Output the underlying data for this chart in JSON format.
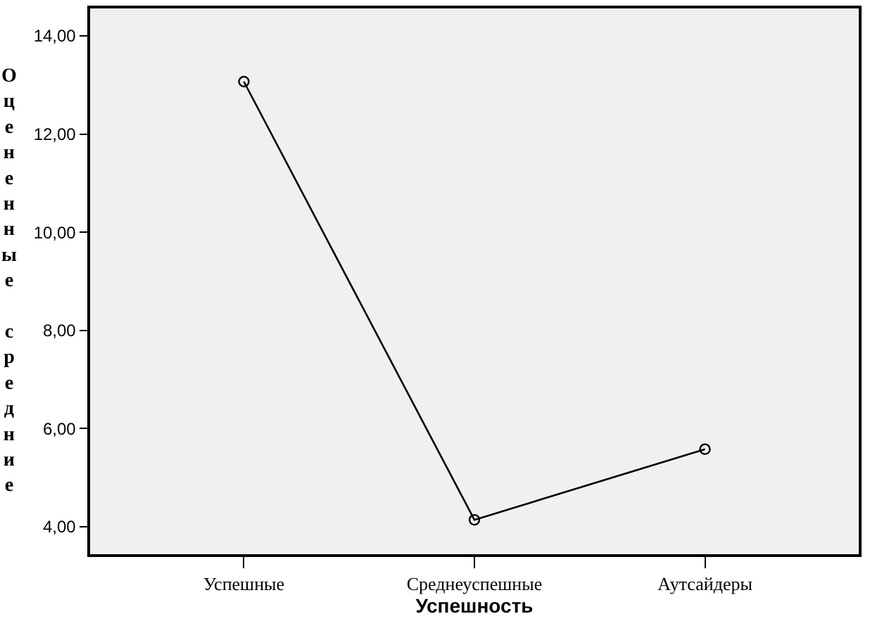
{
  "chart_data": {
    "type": "line",
    "xlabel": "Успешность",
    "ylabel": "Оцененные средние",
    "categories": [
      "Успешные",
      "Среднеуспешные",
      "Аутсайдеры"
    ],
    "series": [
      {
        "color": "#000000",
        "values": [
          13.07,
          4.14,
          5.58
        ]
      }
    ],
    "ylim": [
      3.44,
      14.56
    ],
    "yticks": [
      {
        "value": 4,
        "label": "4,00"
      },
      {
        "value": 6,
        "label": "6,00"
      },
      {
        "value": 8,
        "label": "8,00"
      },
      {
        "value": 10,
        "label": "10,00"
      },
      {
        "value": 12,
        "label": "12,00"
      },
      {
        "value": 14,
        "label": "14,00"
      }
    ],
    "marker": "circle",
    "line_style": "solid",
    "grid": false,
    "legend": false
  }
}
